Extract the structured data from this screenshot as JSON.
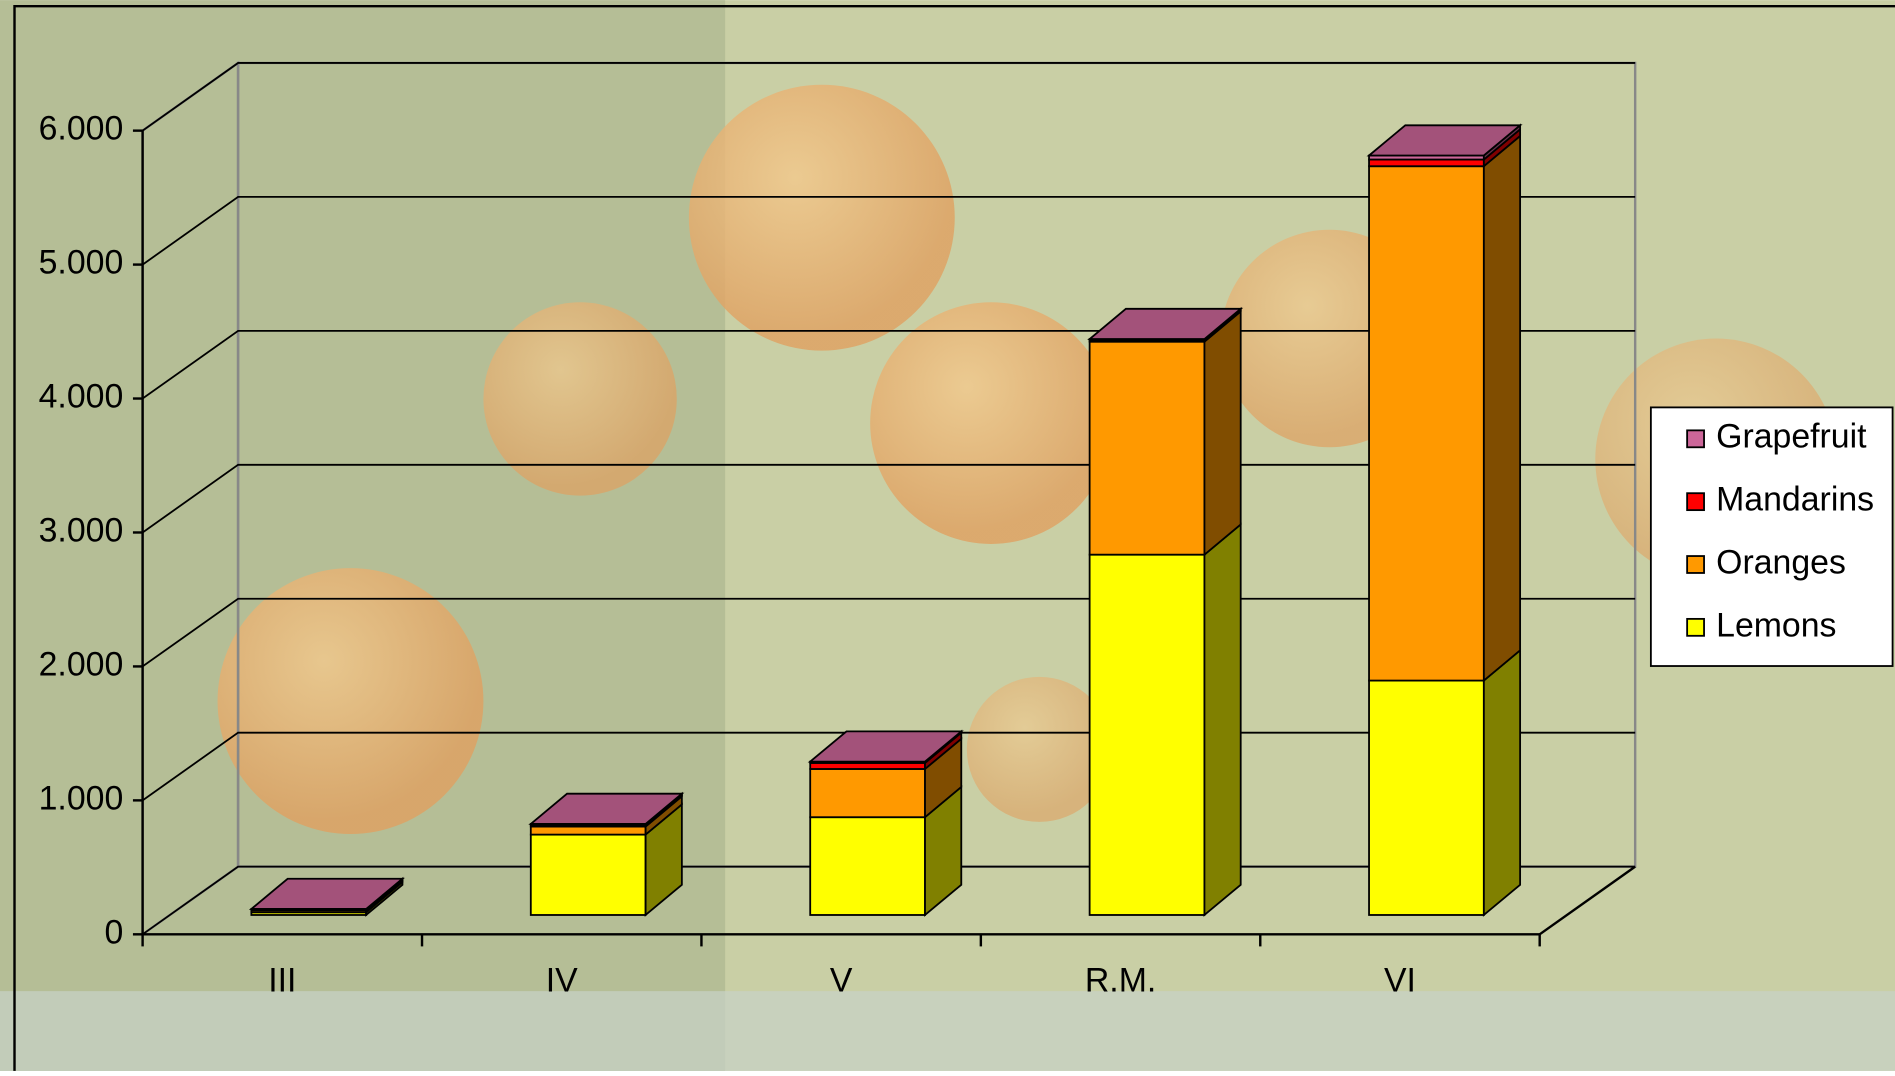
{
  "chart_data": {
    "type": "bar",
    "stacked": true,
    "three_d": true,
    "categories": [
      "III",
      "IV",
      "V",
      "R.M.",
      "VI"
    ],
    "series": [
      {
        "name": "Lemons",
        "color": "#ffff00",
        "values": [
          20,
          600,
          730,
          2690,
          1750
        ]
      },
      {
        "name": "Oranges",
        "color": "#ff9900",
        "values": [
          15,
          60,
          360,
          1590,
          3840
        ]
      },
      {
        "name": "Mandarins",
        "color": "#ff0000",
        "values": [
          5,
          10,
          45,
          10,
          50
        ]
      },
      {
        "name": "Grapefruit",
        "color": "#cc6699",
        "values": [
          5,
          10,
          10,
          10,
          30
        ]
      }
    ],
    "ylim": [
      0,
      6000
    ],
    "yticks": [
      0,
      {
        "value": 1000,
        "label": "1.000"
      },
      {
        "value": 2000,
        "label": "2.000"
      },
      {
        "value": 3000,
        "label": "3.000"
      },
      {
        "value": 4000,
        "label": "4.000"
      },
      {
        "value": 5000,
        "label": "5.000"
      },
      {
        "value": 6000,
        "label": "6.000"
      }
    ],
    "grid": true,
    "legend": "right"
  }
}
